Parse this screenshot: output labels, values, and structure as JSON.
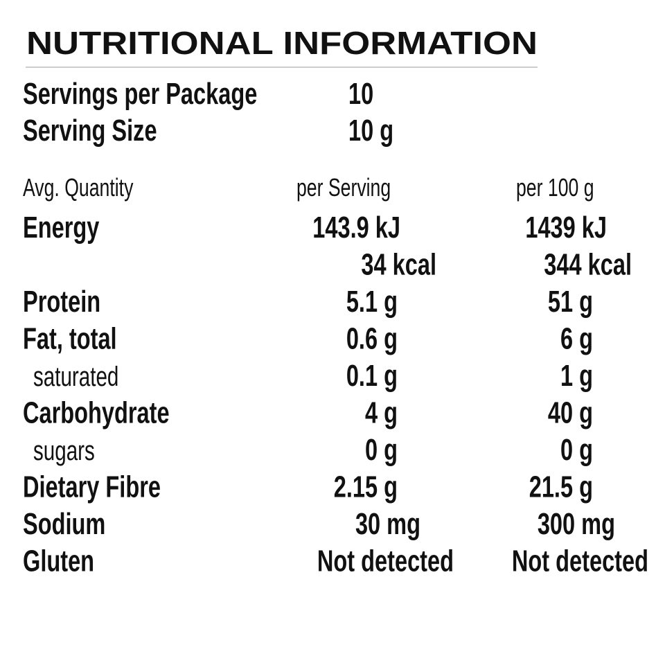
{
  "header": {
    "title": "NUTRITIONAL INFORMATION"
  },
  "servings": [
    {
      "label": "Servings per Package",
      "value": "10"
    },
    {
      "label": "Serving Size",
      "value": "10 g"
    }
  ],
  "table": {
    "columns": [
      "Avg. Quantity",
      "per Serving",
      "per 100 g"
    ],
    "rows": [
      {
        "name": "Energy",
        "per_serving": [
          "143.9 kJ",
          "34 kcal"
        ],
        "per_100g": [
          "1439 kJ",
          "344 kcal"
        ]
      },
      {
        "name": "Protein",
        "per_serving": "5.1 g",
        "per_100g": "51 g"
      },
      {
        "name": "Fat, total",
        "per_serving": "0.6 g",
        "per_100g": "6 g",
        "children": [
          {
            "name": "saturated",
            "per_serving": "0.1 g",
            "per_100g": "1 g"
          }
        ]
      },
      {
        "name": "Carbohydrate",
        "per_serving": "4 g",
        "per_100g": "40 g",
        "children": [
          {
            "name": "sugars",
            "per_serving": "0 g",
            "per_100g": "0 g"
          }
        ]
      },
      {
        "name": "Dietary Fibre",
        "per_serving": "2.15 g",
        "per_100g": "21.5 g"
      },
      {
        "name": "Sodium",
        "per_serving": "30 mg",
        "per_100g": "300 mg"
      },
      {
        "name": "Gluten",
        "per_serving": "Not detected",
        "per_100g": "Not detected"
      }
    ]
  }
}
